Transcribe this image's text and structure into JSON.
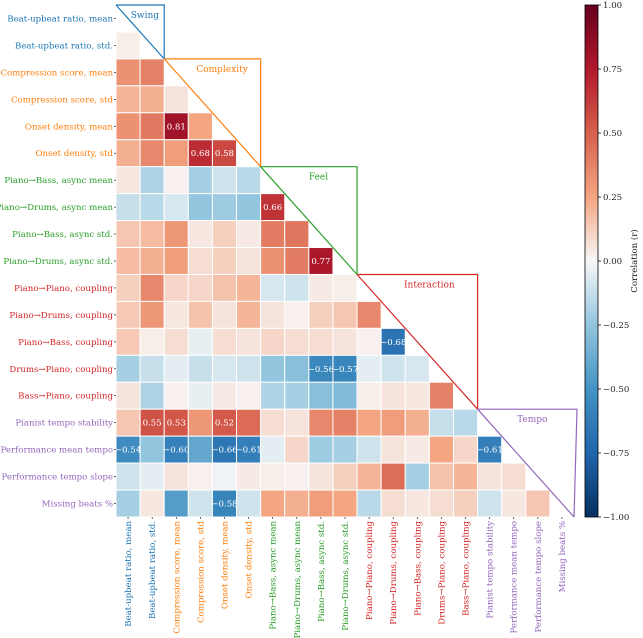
{
  "chart_data": {
    "type": "heatmap",
    "title": "",
    "colorbar": {
      "label": "Correlation (r)",
      "range": [
        -1,
        1
      ],
      "ticks": [
        "1.00",
        "0.75",
        "0.50",
        "0.25",
        "0.00",
        "−0.25",
        "−0.50",
        "−0.75",
        "−1.00"
      ],
      "tick_values": [
        1.0,
        0.75,
        0.5,
        0.25,
        0.0,
        -0.25,
        -0.5,
        -0.75,
        -1.0
      ],
      "cmap": [
        "#2166ac",
        "#f7f7f7",
        "#b2182b"
      ]
    },
    "variables": [
      {
        "label": "Beat-upbeat ratio, mean",
        "group": 0
      },
      {
        "label": "Beat-upbeat ratio, std.",
        "group": 0
      },
      {
        "label": "Compression score, mean",
        "group": 1
      },
      {
        "label": "Compression score, std",
        "group": 1
      },
      {
        "label": "Onset density, mean",
        "group": 1
      },
      {
        "label": "Onset density, std",
        "group": 1
      },
      {
        "label": "Piano→Bass, async mean",
        "group": 2
      },
      {
        "label": "Piano→Drums, async mean",
        "group": 2
      },
      {
        "label": "Piano→Bass, async std.",
        "group": 2
      },
      {
        "label": "Piano→Drums, async std.",
        "group": 2
      },
      {
        "label": "Piano→Piano, coupling",
        "group": 3
      },
      {
        "label": "Piano→Drums, coupling",
        "group": 3
      },
      {
        "label": "Piano→Bass, coupling",
        "group": 3
      },
      {
        "label": "Drums→Piano, coupling",
        "group": 3
      },
      {
        "label": "Bass→Piano, coupling",
        "group": 3
      },
      {
        "label": "Pianist tempo stability",
        "group": 4
      },
      {
        "label": "Performance mean tempo",
        "group": 4
      },
      {
        "label": "Performance tempo slope",
        "group": 4
      },
      {
        "label": "Missing beats %",
        "group": 4
      }
    ],
    "groups": [
      {
        "name": "Swing",
        "start": 0,
        "end": 1,
        "color": "#1f77b4"
      },
      {
        "name": "Complexity",
        "start": 2,
        "end": 5,
        "color": "#ff7f0e"
      },
      {
        "name": "Feel",
        "start": 6,
        "end": 9,
        "color": "#2ca02c"
      },
      {
        "name": "Interaction",
        "start": 10,
        "end": 14,
        "color": "#d62728"
      },
      {
        "name": "Tempo",
        "start": 15,
        "end": 18,
        "color": "#9467bd"
      }
    ],
    "values": [
      [],
      [
        0.03
      ],
      [
        0.32,
        0.38
      ],
      [
        0.2,
        0.22,
        0.06
      ],
      [
        0.32,
        0.41,
        0.81,
        0.25
      ],
      [
        0.22,
        0.36,
        0.28,
        0.68,
        0.58
      ],
      [
        0.05,
        -0.18,
        0.02,
        -0.2,
        -0.1,
        -0.15
      ],
      [
        -0.12,
        -0.15,
        -0.08,
        -0.25,
        -0.22,
        -0.25,
        0.66
      ],
      [
        0.15,
        0.18,
        0.3,
        0.05,
        0.12,
        0.04,
        0.4,
        0.42
      ],
      [
        0.18,
        0.22,
        0.28,
        0.08,
        0.12,
        0.06,
        0.32,
        0.4,
        0.77
      ],
      [
        0.12,
        0.35,
        0.1,
        0.1,
        0.16,
        0.2,
        -0.08,
        -0.1,
        0.04,
        0.03
      ],
      [
        0.14,
        0.3,
        0.05,
        0.16,
        0.06,
        0.2,
        0.06,
        0.02,
        0.12,
        0.15,
        0.35
      ],
      [
        0.14,
        0.03,
        0.08,
        -0.04,
        0.08,
        0.06,
        0.1,
        0.08,
        0.08,
        0.06,
        0.02,
        -0.68
      ],
      [
        -0.2,
        -0.12,
        -0.05,
        -0.12,
        -0.08,
        -0.1,
        -0.25,
        -0.28,
        -0.56,
        -0.57,
        -0.05,
        -0.1,
        -0.08
      ],
      [
        0.06,
        -0.18,
        0.02,
        -0.04,
        0.04,
        0.02,
        -0.18,
        -0.2,
        -0.28,
        -0.3,
        0.03,
        0.06,
        0.05,
        0.38
      ],
      [
        0.15,
        0.55,
        0.53,
        0.3,
        0.52,
        0.46,
        0.08,
        0.06,
        0.36,
        0.38,
        0.25,
        0.28,
        0.22,
        -0.12,
        -0.15
      ],
      [
        -0.54,
        -0.25,
        -0.6,
        -0.4,
        -0.66,
        -0.61,
        -0.05,
        0.1,
        -0.22,
        -0.2,
        -0.1,
        0.06,
        0.04,
        0.25,
        0.1,
        -0.61
      ],
      [
        -0.1,
        -0.05,
        0.06,
        0.02,
        -0.02,
        0.04,
        0.03,
        0.02,
        0.06,
        0.12,
        0.2,
        0.45,
        -0.2,
        0.16,
        0.2,
        0.06,
        0.08
      ],
      [
        -0.2,
        0.05,
        -0.45,
        -0.1,
        -0.58,
        -0.1,
        0.25,
        0.22,
        0.28,
        0.25,
        -0.15,
        0.08,
        0.05,
        0.08,
        0.12,
        -0.1,
        0.05,
        0.15
      ]
    ],
    "annotations": [
      {
        "row": 4,
        "col": 2,
        "text": "0.81"
      },
      {
        "row": 5,
        "col": 3,
        "text": "0.68"
      },
      {
        "row": 5,
        "col": 4,
        "text": "0.58"
      },
      {
        "row": 7,
        "col": 6,
        "text": "0.66"
      },
      {
        "row": 9,
        "col": 8,
        "text": "0.77"
      },
      {
        "row": 12,
        "col": 11,
        "text": "−0.68"
      },
      {
        "row": 13,
        "col": 8,
        "text": "−0.56"
      },
      {
        "row": 13,
        "col": 9,
        "text": "−0.57"
      },
      {
        "row": 15,
        "col": 1,
        "text": "0.55"
      },
      {
        "row": 15,
        "col": 2,
        "text": "0.53"
      },
      {
        "row": 15,
        "col": 4,
        "text": "0.52"
      },
      {
        "row": 16,
        "col": 0,
        "text": "−0.54"
      },
      {
        "row": 16,
        "col": 2,
        "text": "−0.60"
      },
      {
        "row": 16,
        "col": 4,
        "text": "−0.66"
      },
      {
        "row": 16,
        "col": 5,
        "text": "−0.61"
      },
      {
        "row": 16,
        "col": 15,
        "text": "−0.61"
      },
      {
        "row": 18,
        "col": 4,
        "text": "−0.58"
      }
    ]
  }
}
